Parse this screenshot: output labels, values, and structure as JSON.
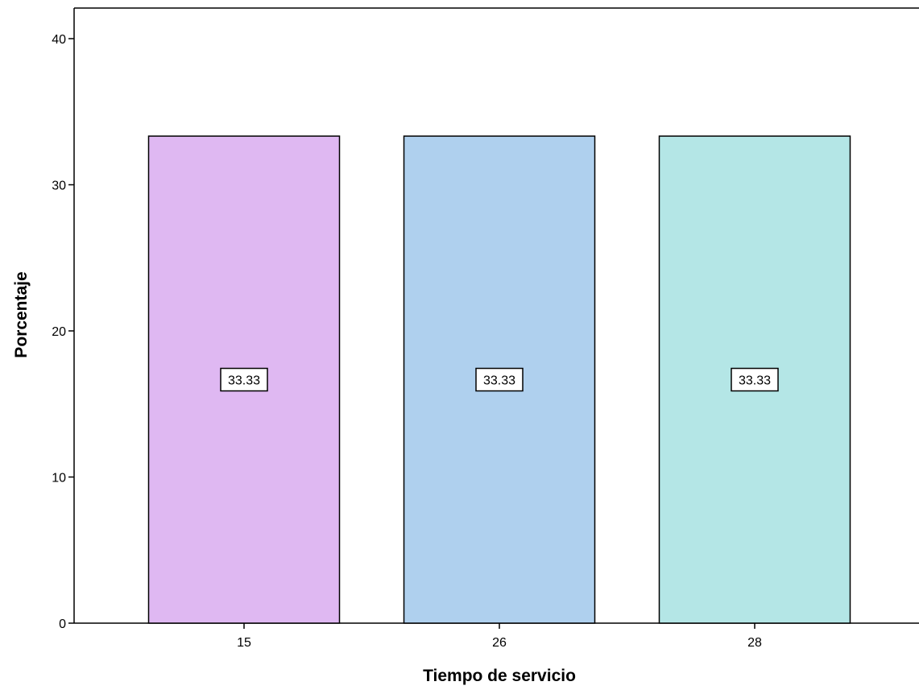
{
  "chart_data": {
    "type": "bar",
    "title": "",
    "xlabel": "Tiempo de servicio",
    "ylabel": "Porcentaje",
    "categories": [
      "15",
      "26",
      "28"
    ],
    "values": [
      33.33,
      33.33,
      33.33
    ],
    "data_labels": [
      "33.33",
      "33.33",
      "33.33"
    ],
    "colors": [
      "#dfb8f2",
      "#afd0ee",
      "#b4e6e6"
    ],
    "ylim": [
      0,
      40
    ],
    "yticks": [
      0,
      10,
      20,
      30,
      40
    ],
    "grid": false,
    "legend": "none"
  }
}
